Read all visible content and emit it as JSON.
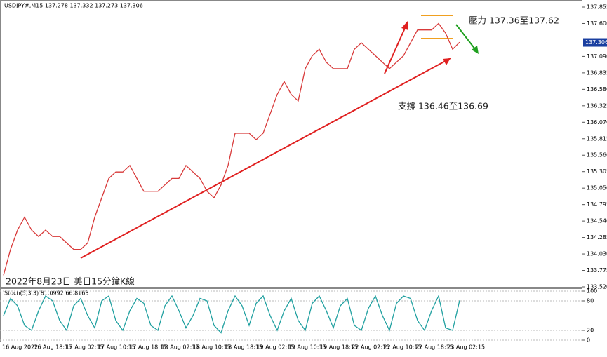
{
  "header": "USDJPY#,M15 137.278 137.332 137.273 137.306",
  "chart_data": [
    {
      "type": "line",
      "title": "2022年8月23日 美日15分鐘K線",
      "annotations": [
        "壓力 137.36至137.62",
        "支撐 136.46至136.69"
      ],
      "current_price": {
        "value": 137.306,
        "label": "137.306"
      },
      "ylim": [
        133.52,
        137.855
      ],
      "yticks": [
        137.855,
        {
          "value": 137.6,
          "label": "137.600"
        },
        {
          "value": 137.09,
          "label": "137.090"
        },
        136.835,
        {
          "value": 136.58,
          "label": "136.580"
        },
        136.325,
        {
          "value": 136.07,
          "label": "136.070"
        },
        135.815,
        {
          "value": 135.56,
          "label": "135.560"
        },
        135.305,
        {
          "value": 135.05,
          "label": "135.050"
        },
        134.795,
        {
          "value": 134.54,
          "label": "134.540"
        },
        134.285,
        {
          "value": 134.03,
          "label": "134.030"
        },
        133.775,
        {
          "value": 133.52,
          "label": "133.520"
        }
      ],
      "x_labels": [
        "16 Aug 2022",
        "16 Aug 18:15",
        "17 Aug 02:15",
        "17 Aug 10:15",
        "17 Aug 18:15",
        "18 Aug 02:15",
        "18 Aug 10:15",
        "18 Aug 18:15",
        "19 Aug 02:15",
        "19 Aug 10:15",
        "19 Aug 18:15",
        "22 Aug 02:15",
        "22 Aug 10:15",
        "22 Aug 18:15",
        "23 Aug 02:15"
      ],
      "series": [
        {
          "color": "#d83a3a",
          "values": [
            133.7,
            134.1,
            134.4,
            134.6,
            134.4,
            134.3,
            134.4,
            134.3,
            134.3,
            134.2,
            134.1,
            134.1,
            134.2,
            134.6,
            134.9,
            135.2,
            135.3,
            135.3,
            135.4,
            135.2,
            135.0,
            135.0,
            135.0,
            135.1,
            135.2,
            135.2,
            135.4,
            135.3,
            135.2,
            135.0,
            134.9,
            135.1,
            135.4,
            135.9,
            135.9,
            135.9,
            135.8,
            135.9,
            136.2,
            136.5,
            136.7,
            136.5,
            136.4,
            136.9,
            137.1,
            137.2,
            137.0,
            136.9,
            136.9,
            136.9,
            137.2,
            137.3,
            137.2,
            137.1,
            137.0,
            136.9,
            137.0,
            137.1,
            137.3,
            137.5,
            137.5,
            137.5,
            137.6,
            137.45,
            137.2,
            137.31
          ]
        }
      ]
    },
    {
      "type": "line",
      "title": "Stoch(5,3,3) 81.0992 66.8163",
      "ylim": [
        0,
        100
      ],
      "yticks": [
        100,
        80,
        20,
        0
      ],
      "series": [
        {
          "color": "#20a0a0",
          "values": [
            50,
            85,
            70,
            30,
            20,
            60,
            90,
            80,
            40,
            20,
            70,
            85,
            50,
            25,
            80,
            90,
            40,
            20,
            60,
            85,
            75,
            30,
            20,
            70,
            90,
            60,
            25,
            50,
            85,
            80,
            30,
            15,
            60,
            90,
            70,
            30,
            75,
            90,
            50,
            20,
            60,
            85,
            40,
            20,
            75,
            90,
            60,
            25,
            70,
            85,
            30,
            20,
            65,
            90,
            50,
            20,
            75,
            90,
            85,
            40,
            20,
            60,
            90,
            25,
            20,
            81
          ]
        }
      ]
    }
  ]
}
